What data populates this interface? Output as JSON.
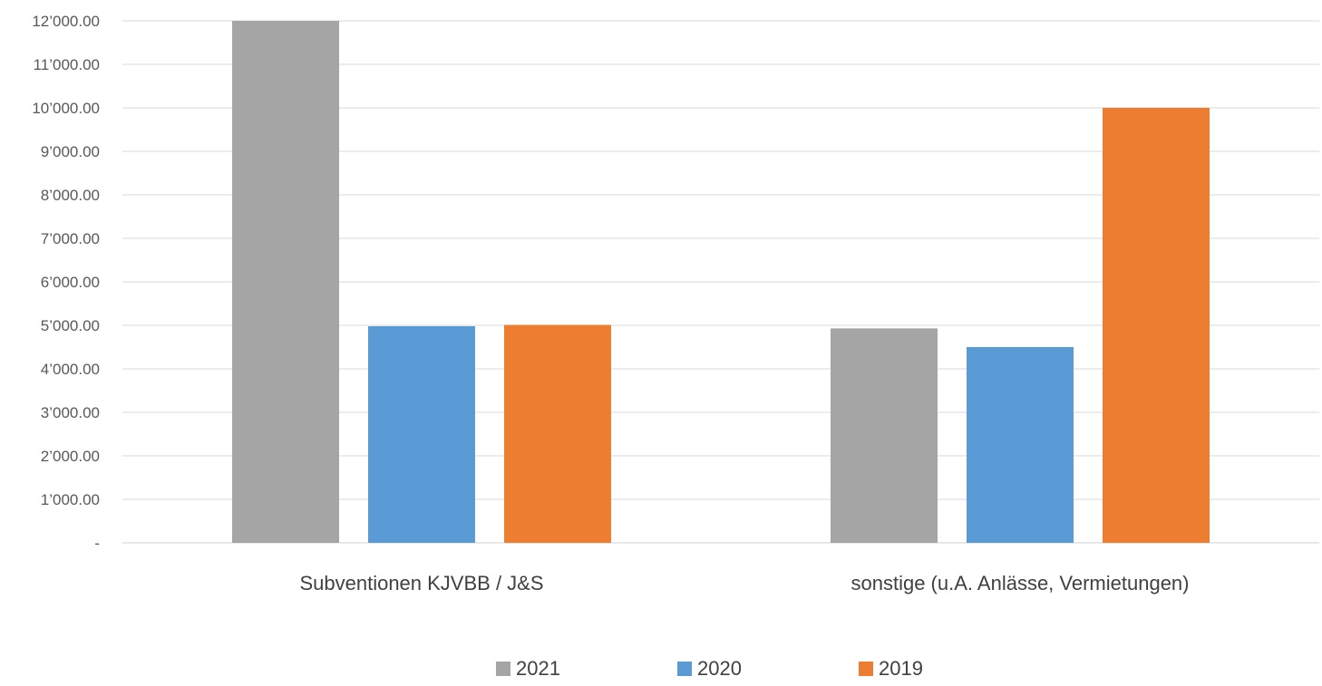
{
  "chart_data": {
    "type": "bar",
    "title": "",
    "xlabel": "",
    "ylabel": "",
    "categories": [
      "Subventionen KJVBB / J&S",
      "sonstige (u.A. Anlässe, Vermietungen)"
    ],
    "series": [
      {
        "name": "2021",
        "color": "#a5a5a5",
        "values": [
          12000,
          4930
        ]
      },
      {
        "name": "2020",
        "color": "#5b9bd5",
        "values": [
          4980,
          4500
        ]
      },
      {
        "name": "2019",
        "color": "#ed7d31",
        "values": [
          5010,
          10000
        ]
      }
    ],
    "ylim": [
      0,
      12000
    ],
    "y_ticks": [
      0,
      1000,
      2000,
      3000,
      4000,
      5000,
      6000,
      7000,
      8000,
      9000,
      10000,
      11000,
      12000
    ],
    "y_tick_labels": [
      "-",
      "1’000.00",
      "2’000.00",
      "3’000.00",
      "4’000.00",
      "5’000.00",
      "6’000.00",
      "7’000.00",
      "8’000.00",
      "9’000.00",
      "10’000.00",
      "11’000.00",
      "12’000.00"
    ],
    "grid": true,
    "legend_position": "bottom"
  }
}
